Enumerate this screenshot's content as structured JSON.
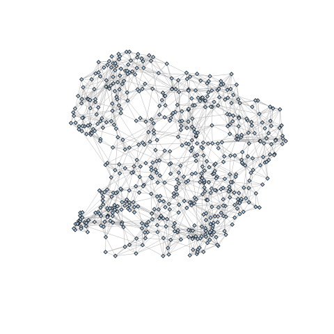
{
  "graph": {
    "node_count": 600,
    "node_shape": "diamond",
    "node_fill": "#a9cbe8",
    "node_stroke": "#1a1a1a",
    "edge_color": "#a6a6a6",
    "background": "#ffffff"
  }
}
